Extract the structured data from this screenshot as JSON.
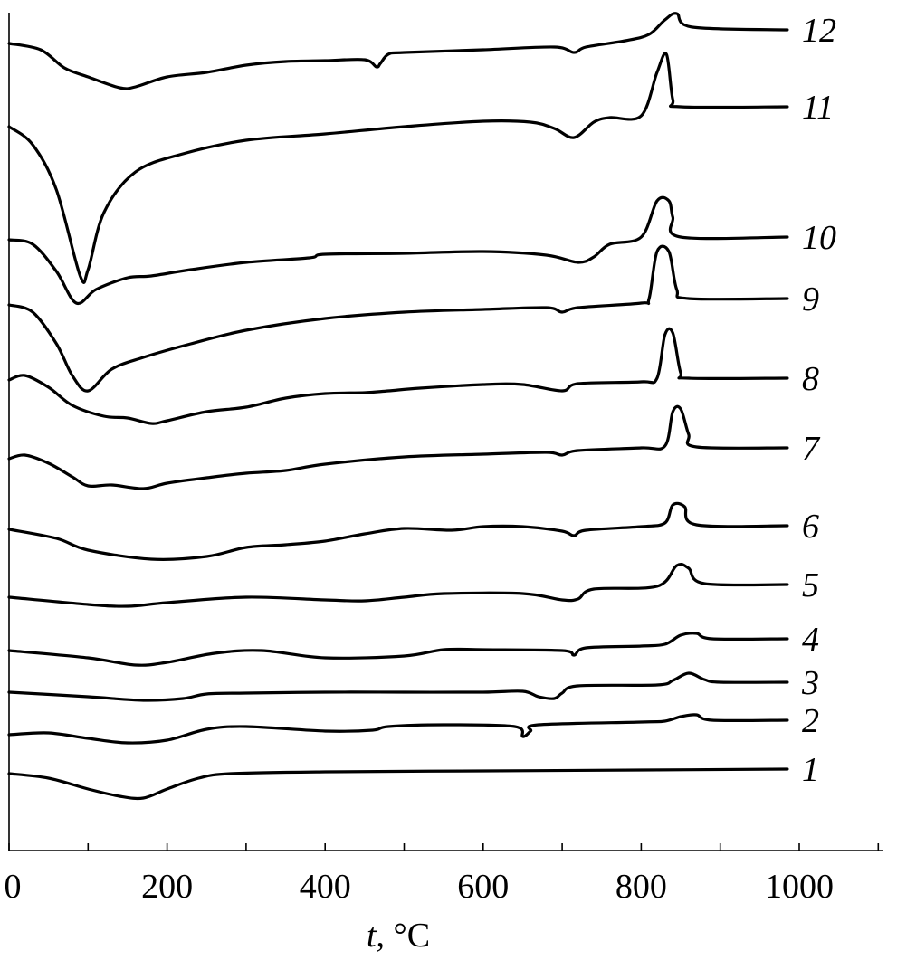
{
  "chart_data": {
    "type": "line",
    "title": "",
    "xlabel": {
      "var": "t",
      "rest": ", °C"
    },
    "ylabel": "",
    "xlim": [
      0,
      1100
    ],
    "x_ticks": [
      0,
      200,
      400,
      600,
      800,
      1000
    ],
    "y_axis_values": "unlabeled relative curves (vertically offset)",
    "grid": false,
    "series": [
      {
        "name": "1",
        "points": [
          [
            0,
            855
          ],
          [
            50,
            860
          ],
          [
            100,
            872
          ],
          [
            140,
            880
          ],
          [
            170,
            882
          ],
          [
            200,
            872
          ],
          [
            240,
            860
          ],
          [
            280,
            855
          ],
          [
            400,
            853
          ],
          [
            600,
            852
          ],
          [
            800,
            851
          ],
          [
            985,
            850
          ]
        ]
      },
      {
        "name": "2",
        "points": [
          [
            0,
            812
          ],
          [
            50,
            810
          ],
          [
            100,
            816
          ],
          [
            150,
            821
          ],
          [
            200,
            818
          ],
          [
            250,
            806
          ],
          [
            300,
            803
          ],
          [
            400,
            808
          ],
          [
            460,
            807
          ],
          [
            480,
            803
          ],
          [
            550,
            801
          ],
          [
            640,
            803
          ],
          [
            650,
            814
          ],
          [
            660,
            808
          ],
          [
            670,
            801
          ],
          [
            800,
            798
          ],
          [
            830,
            797
          ],
          [
            850,
            792
          ],
          [
            870,
            790
          ],
          [
            890,
            796
          ],
          [
            985,
            796
          ]
        ]
      },
      {
        "name": "3",
        "points": [
          [
            0,
            765
          ],
          [
            100,
            770
          ],
          [
            170,
            774
          ],
          [
            220,
            772
          ],
          [
            250,
            767
          ],
          [
            300,
            766
          ],
          [
            400,
            765
          ],
          [
            500,
            765
          ],
          [
            600,
            765
          ],
          [
            650,
            764
          ],
          [
            670,
            770
          ],
          [
            690,
            772
          ],
          [
            700,
            766
          ],
          [
            720,
            758
          ],
          [
            820,
            757
          ],
          [
            840,
            752
          ],
          [
            860,
            744
          ],
          [
            880,
            751
          ],
          [
            900,
            754
          ],
          [
            985,
            754
          ]
        ]
      },
      {
        "name": "4",
        "points": [
          [
            0,
            719
          ],
          [
            100,
            727
          ],
          [
            160,
            735
          ],
          [
            200,
            732
          ],
          [
            260,
            722
          ],
          [
            320,
            719
          ],
          [
            400,
            727
          ],
          [
            500,
            725
          ],
          [
            550,
            718
          ],
          [
            600,
            718
          ],
          [
            700,
            719
          ],
          [
            715,
            724
          ],
          [
            730,
            716
          ],
          [
            800,
            714
          ],
          [
            830,
            712
          ],
          [
            850,
            702
          ],
          [
            870,
            700
          ],
          [
            890,
            706
          ],
          [
            985,
            706
          ]
        ]
      },
      {
        "name": "5",
        "points": [
          [
            0,
            660
          ],
          [
            100,
            668
          ],
          [
            150,
            670
          ],
          [
            200,
            666
          ],
          [
            300,
            660
          ],
          [
            400,
            663
          ],
          [
            450,
            664
          ],
          [
            500,
            660
          ],
          [
            550,
            656
          ],
          [
            650,
            656
          ],
          [
            700,
            663
          ],
          [
            720,
            662
          ],
          [
            740,
            651
          ],
          [
            820,
            648
          ],
          [
            845,
            625
          ],
          [
            860,
            628
          ],
          [
            880,
            645
          ],
          [
            985,
            646
          ]
        ]
      },
      {
        "name": "6",
        "points": [
          [
            0,
            585
          ],
          [
            60,
            595
          ],
          [
            100,
            608
          ],
          [
            180,
            618
          ],
          [
            250,
            615
          ],
          [
            300,
            605
          ],
          [
            350,
            602
          ],
          [
            400,
            598
          ],
          [
            450,
            590
          ],
          [
            500,
            584
          ],
          [
            560,
            586
          ],
          [
            600,
            582
          ],
          [
            650,
            582
          ],
          [
            700,
            587
          ],
          [
            715,
            592
          ],
          [
            730,
            586
          ],
          [
            800,
            582
          ],
          [
            830,
            578
          ],
          [
            840,
            558
          ],
          [
            855,
            560
          ],
          [
            870,
            580
          ],
          [
            985,
            581
          ]
        ]
      },
      {
        "name": "7",
        "points": [
          [
            0,
            507
          ],
          [
            20,
            503
          ],
          [
            50,
            512
          ],
          [
            80,
            527
          ],
          [
            100,
            537
          ],
          [
            130,
            536
          ],
          [
            170,
            540
          ],
          [
            200,
            534
          ],
          [
            250,
            528
          ],
          [
            300,
            523
          ],
          [
            350,
            520
          ],
          [
            400,
            513
          ],
          [
            500,
            505
          ],
          [
            600,
            502
          ],
          [
            680,
            500
          ],
          [
            700,
            503
          ],
          [
            720,
            498
          ],
          [
            800,
            495
          ],
          [
            830,
            493
          ],
          [
            840,
            455
          ],
          [
            850,
            452
          ],
          [
            860,
            480
          ],
          [
            870,
            494
          ],
          [
            985,
            495
          ]
        ]
      },
      {
        "name": "8",
        "points": [
          [
            0,
            420
          ],
          [
            20,
            415
          ],
          [
            50,
            428
          ],
          [
            80,
            448
          ],
          [
            120,
            460
          ],
          [
            150,
            462
          ],
          [
            180,
            468
          ],
          [
            200,
            465
          ],
          [
            250,
            455
          ],
          [
            300,
            450
          ],
          [
            350,
            440
          ],
          [
            400,
            435
          ],
          [
            450,
            434
          ],
          [
            480,
            432
          ],
          [
            520,
            429
          ],
          [
            600,
            425
          ],
          [
            650,
            425
          ],
          [
            700,
            432
          ],
          [
            720,
            424
          ],
          [
            800,
            422
          ],
          [
            820,
            418
          ],
          [
            830,
            370
          ],
          [
            840,
            368
          ],
          [
            850,
            412
          ],
          [
            860,
            418
          ],
          [
            985,
            418
          ]
        ]
      },
      {
        "name": "9",
        "points": [
          [
            0,
            337
          ],
          [
            30,
            345
          ],
          [
            60,
            380
          ],
          [
            80,
            415
          ],
          [
            100,
            432
          ],
          [
            130,
            408
          ],
          [
            170,
            395
          ],
          [
            230,
            380
          ],
          [
            300,
            365
          ],
          [
            400,
            352
          ],
          [
            500,
            345
          ],
          [
            600,
            342
          ],
          [
            680,
            340
          ],
          [
            700,
            345
          ],
          [
            720,
            340
          ],
          [
            800,
            335
          ],
          [
            810,
            330
          ],
          [
            820,
            278
          ],
          [
            835,
            278
          ],
          [
            845,
            320
          ],
          [
            860,
            330
          ],
          [
            985,
            330
          ]
        ]
      },
      {
        "name": "10",
        "points": [
          [
            0,
            265
          ],
          [
            30,
            270
          ],
          [
            60,
            300
          ],
          [
            85,
            335
          ],
          [
            110,
            320
          ],
          [
            150,
            307
          ],
          [
            180,
            305
          ],
          [
            230,
            298
          ],
          [
            300,
            290
          ],
          [
            380,
            285
          ],
          [
            400,
            281
          ],
          [
            500,
            280
          ],
          [
            600,
            278
          ],
          [
            680,
            282
          ],
          [
            720,
            290
          ],
          [
            740,
            284
          ],
          [
            760,
            270
          ],
          [
            800,
            262
          ],
          [
            820,
            222
          ],
          [
            835,
            222
          ],
          [
            840,
            240
          ],
          [
            850,
            262
          ],
          [
            985,
            262
          ]
        ]
      },
      {
        "name": "11",
        "points": [
          [
            0,
            140
          ],
          [
            30,
            160
          ],
          [
            60,
            210
          ],
          [
            90,
            305
          ],
          [
            100,
            298
          ],
          [
            120,
            235
          ],
          [
            160,
            190
          ],
          [
            220,
            170
          ],
          [
            300,
            155
          ],
          [
            400,
            148
          ],
          [
            500,
            140
          ],
          [
            600,
            134
          ],
          [
            660,
            135
          ],
          [
            690,
            142
          ],
          [
            715,
            152
          ],
          [
            740,
            135
          ],
          [
            760,
            130
          ],
          [
            800,
            128
          ],
          [
            820,
            80
          ],
          [
            832,
            60
          ],
          [
            840,
            110
          ],
          [
            850,
            118
          ],
          [
            985,
            118
          ]
        ]
      },
      {
        "name": "12",
        "points": [
          [
            0,
            48
          ],
          [
            40,
            55
          ],
          [
            70,
            75
          ],
          [
            100,
            85
          ],
          [
            140,
            97
          ],
          [
            160,
            96
          ],
          [
            200,
            85
          ],
          [
            250,
            80
          ],
          [
            300,
            72
          ],
          [
            350,
            68
          ],
          [
            400,
            67
          ],
          [
            450,
            66
          ],
          [
            465,
            74
          ],
          [
            470,
            70
          ],
          [
            480,
            60
          ],
          [
            500,
            58
          ],
          [
            600,
            55
          ],
          [
            690,
            52
          ],
          [
            715,
            58
          ],
          [
            730,
            52
          ],
          [
            780,
            45
          ],
          [
            810,
            38
          ],
          [
            830,
            22
          ],
          [
            845,
            15
          ],
          [
            865,
            30
          ],
          [
            985,
            33
          ]
        ]
      }
    ]
  }
}
